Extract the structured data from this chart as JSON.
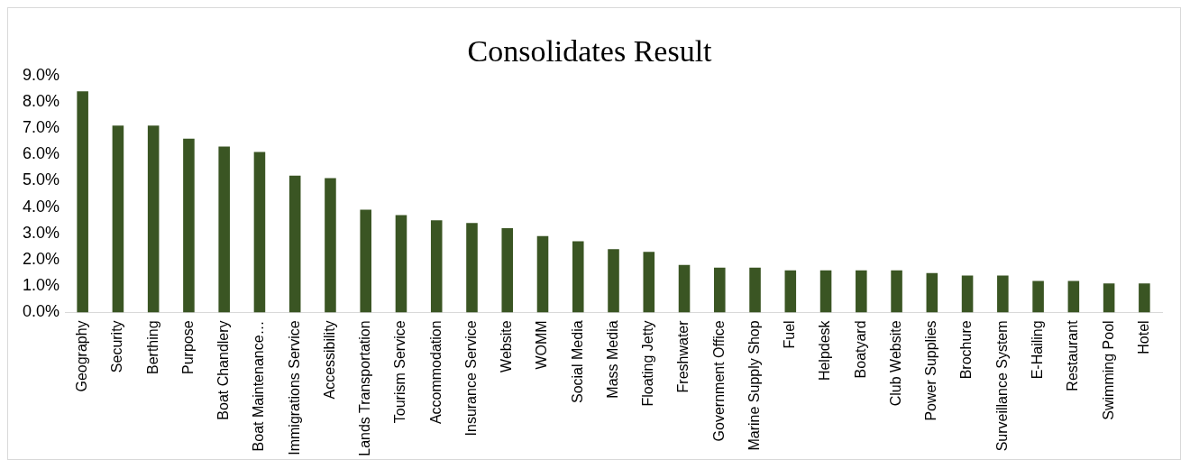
{
  "chart_data": {
    "type": "bar",
    "title": "Consolidates Result",
    "categories": [
      "Geography",
      "Security",
      "Berthing",
      "Purpose",
      "Boat Chandlery",
      "Boat Maintenance…",
      "Immigrations Service",
      "Accessibility",
      "Lands Transportation",
      "Tourism Service",
      "Accommodation",
      "Insurance Service",
      "Website",
      "WOMM",
      "Social Media",
      "Mass Media",
      "Floating Jetty",
      "Freshwater",
      "Government Office",
      "Marine Supply Shop",
      "Fuel",
      "Helpdesk",
      "Boatyard",
      "Club Website",
      "Power Supplies",
      "Brochure",
      "Surveillance System",
      "E-Hailing",
      "Restaurant",
      "Swimming Pool",
      "Hotel"
    ],
    "values": [
      8.4,
      7.1,
      7.1,
      6.6,
      6.3,
      6.1,
      5.2,
      5.1,
      3.9,
      3.7,
      3.5,
      3.4,
      3.2,
      2.9,
      2.7,
      2.4,
      2.3,
      1.8,
      1.7,
      1.7,
      1.6,
      1.6,
      1.6,
      1.6,
      1.5,
      1.4,
      1.4,
      1.2,
      1.2,
      1.1,
      1.1
    ],
    "color": "#3a5523",
    "ylim": [
      0,
      9
    ],
    "yticks": [
      {
        "value": 0,
        "label": "0.0%"
      },
      {
        "value": 1,
        "label": "1.0%"
      },
      {
        "value": 2,
        "label": "2.0%"
      },
      {
        "value": 3,
        "label": "3.0%"
      },
      {
        "value": 4,
        "label": "4.0%"
      },
      {
        "value": 5,
        "label": "5.0%"
      },
      {
        "value": 6,
        "label": "6.0%"
      },
      {
        "value": 7,
        "label": "7.0%"
      },
      {
        "value": 8,
        "label": "8.0%"
      },
      {
        "value": 9,
        "label": "9.0%"
      }
    ],
    "grid": false,
    "legend": false
  }
}
